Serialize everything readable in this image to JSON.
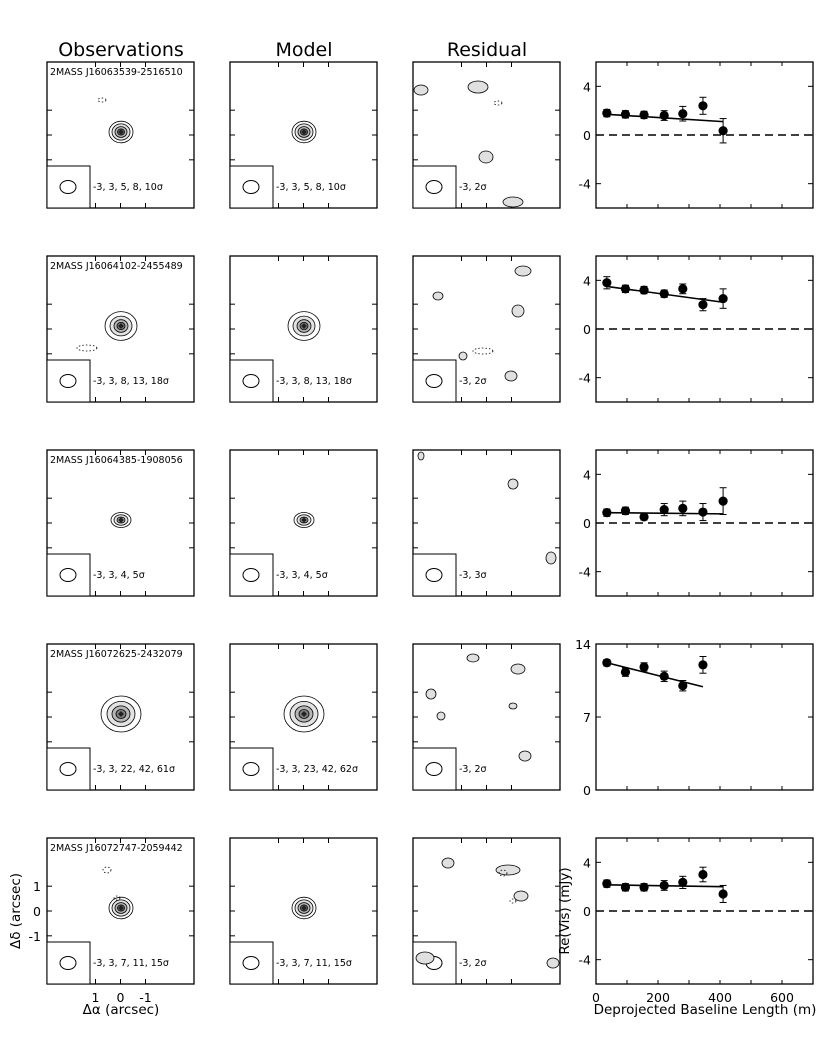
{
  "columns": {
    "observations": "Observations",
    "model": "Model",
    "residual": "Residual"
  },
  "axes": {
    "image_xlabel": "Δα (arcsec)",
    "image_ylabel": "Δδ (arcsec)",
    "image_xticks": [
      "1",
      "0",
      "-1"
    ],
    "image_yticks": [
      "1",
      "0",
      "-1"
    ],
    "vis_ylabel": "Re(Vis) (mJy)",
    "vis_xlabel": "Deprojected Baseline Length (m)",
    "vis_xticks": [
      "0",
      "200",
      "400",
      "600"
    ]
  },
  "rows": [
    {
      "name": "2MASS J16063539-2516510",
      "obs_levels": "-3, 3, 5, 8, 10σ",
      "model_levels": "-3, 3, 5, 8, 10σ",
      "resid_levels": "-3, 2σ",
      "yticks": [
        "4",
        "0",
        "-4"
      ]
    },
    {
      "name": "2MASS J16064102-2455489",
      "obs_levels": "-3, 3, 8, 13, 18σ",
      "model_levels": "-3, 3, 8, 13, 18σ",
      "resid_levels": "-3, 2σ",
      "yticks": [
        "4",
        "0",
        "-4"
      ]
    },
    {
      "name": "2MASS J16064385-1908056",
      "obs_levels": "-3, 3, 4, 5σ",
      "model_levels": "-3, 3, 4, 5σ",
      "resid_levels": "-3, 3σ",
      "yticks": [
        "4",
        "0",
        "-4"
      ]
    },
    {
      "name": "2MASS J16072625-2432079",
      "obs_levels": "-3, 3, 22, 42, 61σ",
      "model_levels": "-3, 3, 23, 42, 62σ",
      "resid_levels": "-3, 2σ",
      "yticks": [
        "14",
        "7",
        "0"
      ]
    },
    {
      "name": "2MASS J16072747-2059442",
      "obs_levels": "-3, 3, 7, 11, 15σ",
      "model_levels": "-3, 3, 7, 11, 15σ",
      "resid_levels": "-3, 2σ",
      "yticks": [
        "4",
        "0",
        "-4"
      ]
    }
  ],
  "chart_data": [
    {
      "type": "scatter",
      "xlim": [
        0,
        700
      ],
      "ylim": [
        -6,
        6
      ],
      "zero_line": "dashed",
      "points": [
        {
          "x": 35,
          "y": 1.8,
          "err": 0.3
        },
        {
          "x": 95,
          "y": 1.7,
          "err": 0.3
        },
        {
          "x": 155,
          "y": 1.65,
          "err": 0.3
        },
        {
          "x": 220,
          "y": 1.6,
          "err": 0.4
        },
        {
          "x": 280,
          "y": 1.75,
          "err": 0.6
        },
        {
          "x": 345,
          "y": 2.4,
          "err": 0.7
        },
        {
          "x": 410,
          "y": 0.35,
          "err": 1.0
        }
      ],
      "model": [
        {
          "x": 35,
          "y": 1.7
        },
        {
          "x": 410,
          "y": 1.1
        }
      ]
    },
    {
      "type": "scatter",
      "xlim": [
        0,
        700
      ],
      "ylim": [
        -6,
        6
      ],
      "zero_line": "dashed",
      "points": [
        {
          "x": 35,
          "y": 3.8,
          "err": 0.5
        },
        {
          "x": 95,
          "y": 3.3,
          "err": 0.3
        },
        {
          "x": 155,
          "y": 3.2,
          "err": 0.3
        },
        {
          "x": 220,
          "y": 2.9,
          "err": 0.3
        },
        {
          "x": 280,
          "y": 3.3,
          "err": 0.4
        },
        {
          "x": 345,
          "y": 2.0,
          "err": 0.5
        },
        {
          "x": 410,
          "y": 2.5,
          "err": 0.8
        }
      ],
      "model": [
        {
          "x": 35,
          "y": 3.5
        },
        {
          "x": 410,
          "y": 2.2
        }
      ]
    },
    {
      "type": "scatter",
      "xlim": [
        0,
        700
      ],
      "ylim": [
        -6,
        6
      ],
      "zero_line": "dashed",
      "points": [
        {
          "x": 35,
          "y": 0.85,
          "err": 0.3
        },
        {
          "x": 95,
          "y": 1.0,
          "err": 0.3
        },
        {
          "x": 155,
          "y": 0.5,
          "err": 0.25
        },
        {
          "x": 220,
          "y": 1.1,
          "err": 0.5
        },
        {
          "x": 280,
          "y": 1.2,
          "err": 0.6
        },
        {
          "x": 345,
          "y": 0.9,
          "err": 0.7
        },
        {
          "x": 410,
          "y": 1.8,
          "err": 1.1
        }
      ],
      "model": [
        {
          "x": 35,
          "y": 0.85
        },
        {
          "x": 410,
          "y": 0.75
        }
      ]
    },
    {
      "type": "scatter",
      "xlim": [
        0,
        700
      ],
      "ylim": [
        0,
        14
      ],
      "zero_line": "none",
      "points": [
        {
          "x": 35,
          "y": 12.2,
          "err": 0.3
        },
        {
          "x": 95,
          "y": 11.3,
          "err": 0.4
        },
        {
          "x": 155,
          "y": 11.8,
          "err": 0.4
        },
        {
          "x": 220,
          "y": 10.9,
          "err": 0.5
        },
        {
          "x": 280,
          "y": 10.0,
          "err": 0.5
        },
        {
          "x": 345,
          "y": 12.0,
          "err": 0.8
        }
      ],
      "model": [
        {
          "x": 35,
          "y": 12.2
        },
        {
          "x": 345,
          "y": 9.9
        }
      ]
    },
    {
      "type": "scatter",
      "xlim": [
        0,
        700
      ],
      "ylim": [
        -6,
        6
      ],
      "zero_line": "dashed",
      "points": [
        {
          "x": 35,
          "y": 2.25,
          "err": 0.3
        },
        {
          "x": 95,
          "y": 1.95,
          "err": 0.3
        },
        {
          "x": 155,
          "y": 1.95,
          "err": 0.3
        },
        {
          "x": 220,
          "y": 2.1,
          "err": 0.4
        },
        {
          "x": 280,
          "y": 2.35,
          "err": 0.5
        },
        {
          "x": 345,
          "y": 3.0,
          "err": 0.6
        },
        {
          "x": 410,
          "y": 1.4,
          "err": 0.7
        }
      ],
      "model": [
        {
          "x": 35,
          "y": 2.15
        },
        {
          "x": 410,
          "y": 2.0
        }
      ]
    }
  ]
}
